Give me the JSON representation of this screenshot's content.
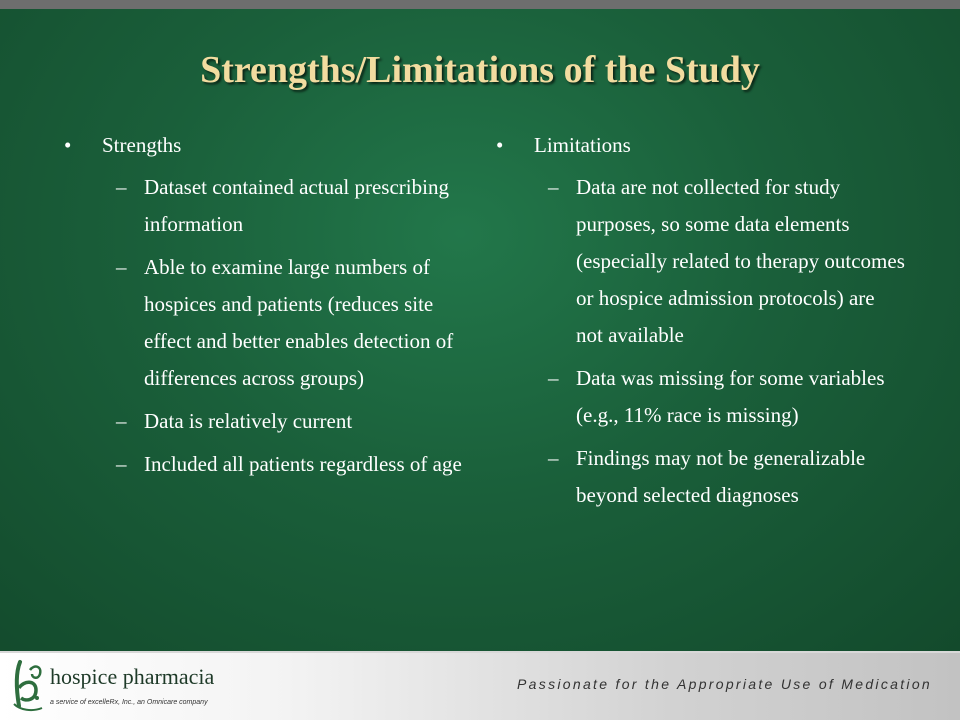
{
  "slide": {
    "title": "Strengths/Limitations of the Study",
    "bullet_glyph": "•",
    "dash_glyph": "–",
    "strengths": {
      "heading": "Strengths",
      "items": [
        "Dataset contained actual prescribing information",
        "Able to examine large numbers of hospices and patients (reduces site effect and better enables detection of differences across groups)",
        "Data is relatively current",
        "Included all patients regardless of age"
      ]
    },
    "limitations": {
      "heading": "Limitations",
      "items": [
        "Data are not collected for study purposes, so some data elements (especially related to therapy outcomes or hospice admission protocols) are not available",
        "Data was missing for some variables  (e.g., 11% race is missing)",
        "Findings may not be generalizable beyond selected diagnoses"
      ]
    }
  },
  "footer": {
    "brand_name": "hospice pharmacia",
    "service_line": "a service of excelleRx, Inc., an Omnicare company",
    "tagline": "Passionate for the Appropriate Use of Medication",
    "logo_icon": "hp-monogram-icon",
    "colors": {
      "title": "#f2dca0",
      "background": "#1a5f3a",
      "logo": "#2e6e3e"
    }
  }
}
